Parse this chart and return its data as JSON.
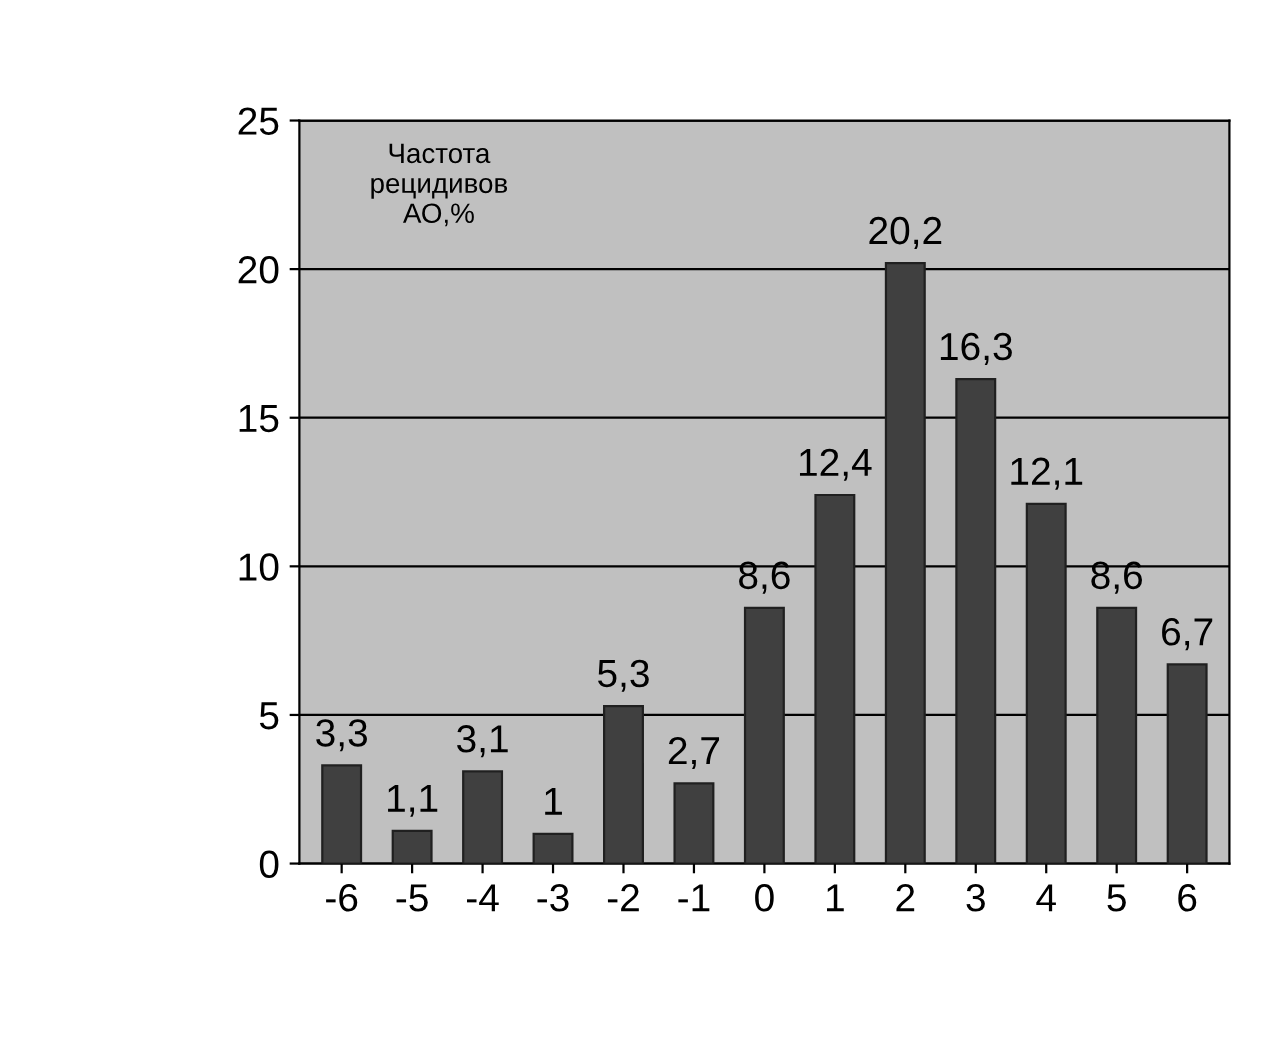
{
  "chart_data": {
    "type": "bar",
    "categories": [
      "-6",
      "-5",
      "-4",
      "-3",
      "-2",
      "-1",
      "0",
      "1",
      "2",
      "3",
      "4",
      "5",
      "6"
    ],
    "values": [
      3.3,
      1.1,
      3.1,
      1,
      5.3,
      2.7,
      8.6,
      12.4,
      20.2,
      16.3,
      12.1,
      8.6,
      6.7
    ],
    "value_labels": [
      "3,3",
      "1,1",
      "3,1",
      "1",
      "5,3",
      "2,7",
      "8,6",
      "12,4",
      "20,2",
      "16,3",
      "12,1",
      "8,6",
      "6,7"
    ],
    "color": "#404040",
    "ylim": [
      0,
      25
    ],
    "yticks": [
      0,
      5,
      10,
      15,
      20,
      25
    ],
    "grid": "y",
    "annotations": [
      "Частота\nрецидивов\nАО,%"
    ]
  }
}
